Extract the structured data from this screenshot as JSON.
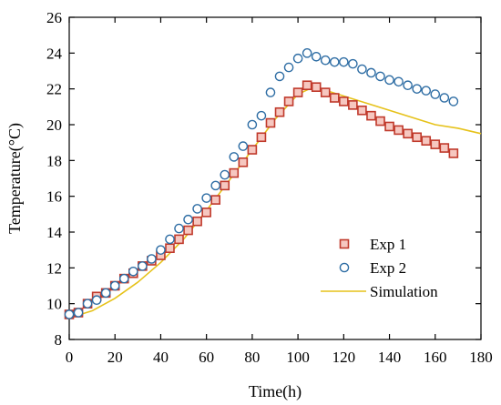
{
  "chart_data": {
    "type": "scatter",
    "title": "",
    "xlabel": "Time(h)",
    "ylabel": "Temperature(°C)",
    "xlim": [
      0,
      180
    ],
    "ylim": [
      8,
      26
    ],
    "xticks": [
      0,
      20,
      40,
      60,
      80,
      100,
      120,
      140,
      160,
      180
    ],
    "yticks": [
      8,
      10,
      12,
      14,
      16,
      18,
      20,
      22,
      24,
      26
    ],
    "grid": false,
    "legend_position": "bottom-right",
    "series": [
      {
        "name": "Exp 1",
        "marker": "square",
        "color": "#c0392b",
        "fill": "#f6c7c0",
        "x": [
          0,
          4,
          8,
          12,
          16,
          20,
          24,
          28,
          32,
          36,
          40,
          44,
          48,
          52,
          56,
          60,
          64,
          68,
          72,
          76,
          80,
          84,
          88,
          92,
          96,
          100,
          104,
          108,
          112,
          116,
          120,
          124,
          128,
          132,
          136,
          140,
          144,
          148,
          152,
          156,
          160,
          164,
          168
        ],
        "y": [
          9.4,
          9.5,
          10.0,
          10.4,
          10.6,
          11.0,
          11.4,
          11.7,
          12.1,
          12.4,
          12.7,
          13.1,
          13.6,
          14.1,
          14.6,
          15.1,
          15.8,
          16.6,
          17.3,
          17.9,
          18.6,
          19.3,
          20.1,
          20.7,
          21.3,
          21.8,
          22.2,
          22.1,
          21.8,
          21.5,
          21.3,
          21.1,
          20.8,
          20.5,
          20.2,
          19.9,
          19.7,
          19.5,
          19.3,
          19.1,
          18.9,
          18.7,
          18.4
        ]
      },
      {
        "name": "Exp 2",
        "marker": "circle",
        "color": "#2e6da4",
        "fill": "#ffffff",
        "x": [
          0,
          4,
          8,
          12,
          16,
          20,
          24,
          28,
          32,
          36,
          40,
          44,
          48,
          52,
          56,
          60,
          64,
          68,
          72,
          76,
          80,
          84,
          88,
          92,
          96,
          100,
          104,
          108,
          112,
          116,
          120,
          124,
          128,
          132,
          136,
          140,
          144,
          148,
          152,
          156,
          160,
          164,
          168
        ],
        "y": [
          9.4,
          9.5,
          10.0,
          10.2,
          10.6,
          11.0,
          11.4,
          11.8,
          12.1,
          12.5,
          13.0,
          13.6,
          14.2,
          14.7,
          15.3,
          15.9,
          16.6,
          17.2,
          18.2,
          18.8,
          20.0,
          20.5,
          21.8,
          22.7,
          23.2,
          23.7,
          24.0,
          23.8,
          23.6,
          23.5,
          23.5,
          23.4,
          23.1,
          22.9,
          22.7,
          22.5,
          22.4,
          22.2,
          22.0,
          21.9,
          21.7,
          21.5,
          21.3
        ]
      },
      {
        "name": "Simulation",
        "marker": "line",
        "color": "#e6c21a",
        "x": [
          0,
          10,
          20,
          30,
          40,
          50,
          60,
          70,
          80,
          90,
          100,
          105,
          110,
          120,
          130,
          140,
          150,
          160,
          170,
          180
        ],
        "y": [
          9.2,
          9.6,
          10.3,
          11.2,
          12.3,
          13.6,
          15.2,
          16.9,
          18.6,
          20.3,
          21.7,
          22.0,
          22.0,
          21.6,
          21.2,
          20.8,
          20.4,
          20.0,
          19.8,
          19.5
        ]
      }
    ]
  }
}
